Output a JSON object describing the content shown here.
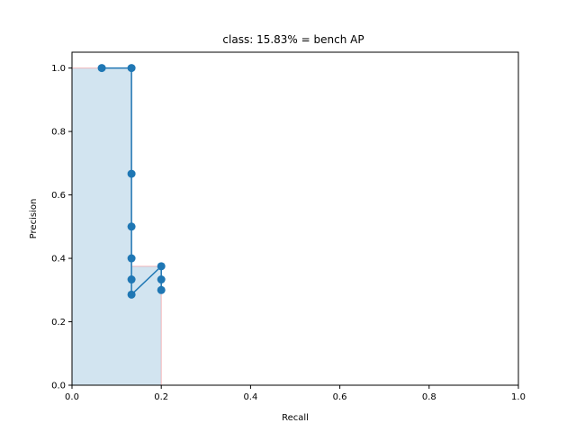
{
  "chart_data": {
    "type": "line",
    "title": "class: 15.83% = bench AP",
    "xlabel": "Recall",
    "ylabel": "Precision",
    "xlim": [
      0.0,
      1.0
    ],
    "ylim": [
      0.0,
      1.05
    ],
    "xticks": [
      "0.0",
      "0.2",
      "0.4",
      "0.6",
      "0.8",
      "1.0"
    ],
    "yticks": [
      "0.0",
      "0.2",
      "0.4",
      "0.6",
      "0.8",
      "1.0"
    ],
    "grid": false,
    "series": [
      {
        "kind": "line-markers",
        "color": "#1f77b4",
        "x": [
          0.0667,
          0.1333,
          0.1333,
          0.1333,
          0.1333,
          0.1333,
          0.1333,
          0.2,
          0.2,
          0.2
        ],
        "y": [
          1.0,
          1.0,
          0.6667,
          0.5,
          0.4,
          0.3333,
          0.2857,
          0.375,
          0.3333,
          0.3
        ]
      }
    ],
    "area": {
      "fill_color": "#1f77b4",
      "fill_opacity": 0.2,
      "edge_color": "#ff0000",
      "x": [
        0.0,
        0.1333,
        0.1333,
        0.2,
        0.2
      ],
      "y": [
        1.0,
        1.0,
        0.375,
        0.375,
        0.0
      ]
    }
  }
}
